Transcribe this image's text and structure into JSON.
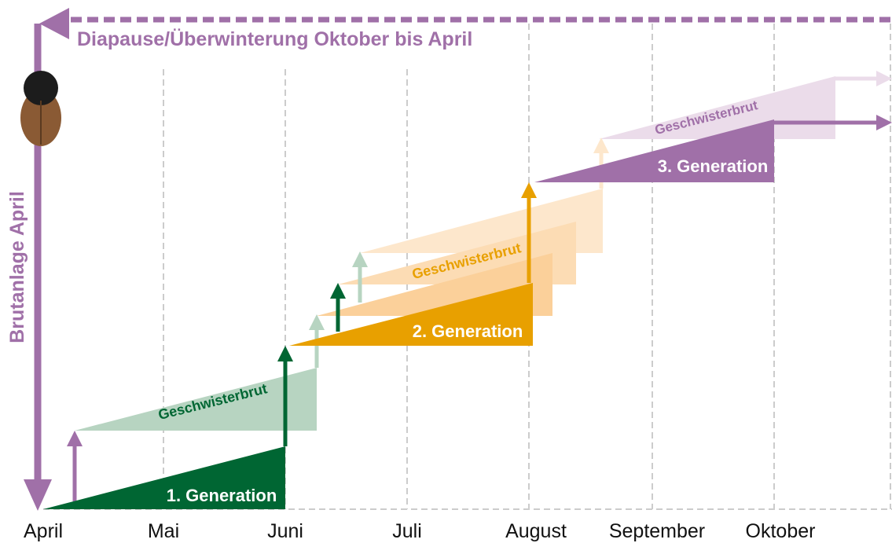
{
  "top_label": "Diapause/Überwinterung Oktober bis April",
  "side_label": "Brutanlage April",
  "months": [
    "April",
    "Mai",
    "Juni",
    "Juli",
    "August",
    "September",
    "Oktober"
  ],
  "generations": [
    {
      "label": "1. Generation",
      "sibling_label": "Geschwisterbrut"
    },
    {
      "label": "2. Generation",
      "sibling_label": "Geschwisterbrut"
    },
    {
      "label": "3. Generation",
      "sibling_label": "Geschwisterbrut"
    }
  ]
}
